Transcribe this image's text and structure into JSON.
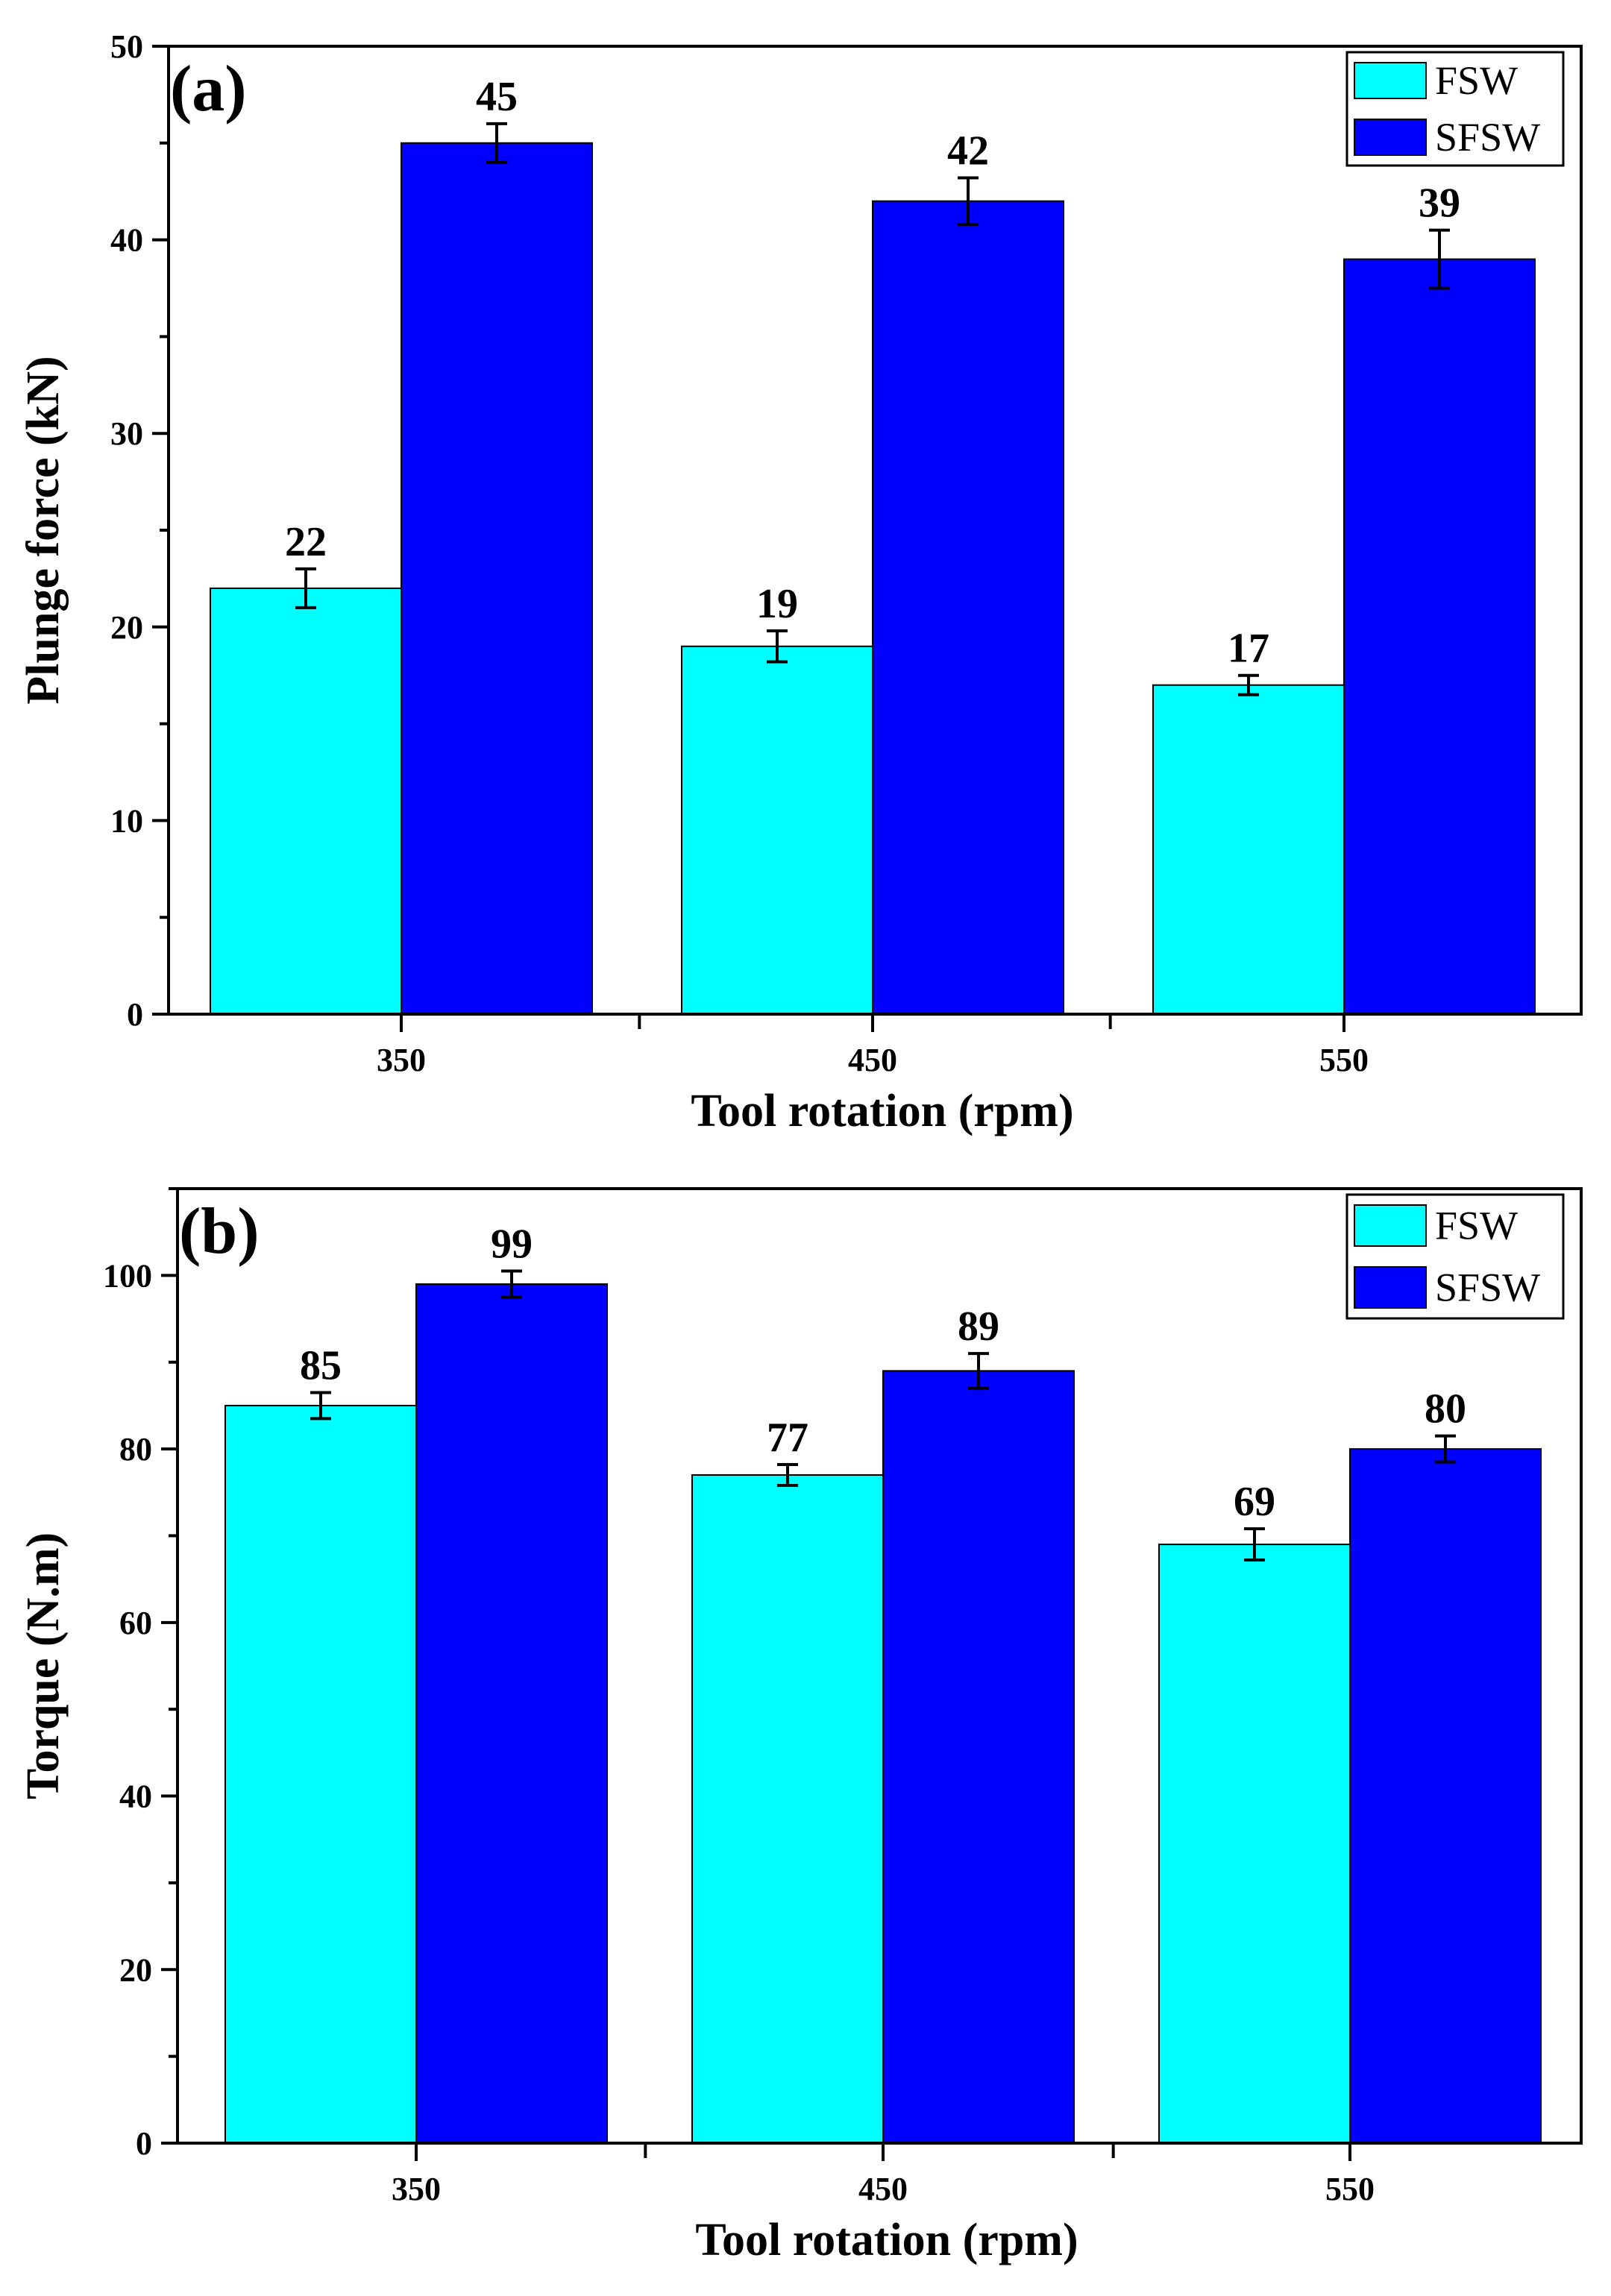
{
  "chart_data": [
    {
      "type": "bar",
      "panel_label": "(a)",
      "categories": [
        "350",
        "450",
        "550"
      ],
      "series": [
        {
          "name": "FSW",
          "color": "#00FFFF",
          "values": [
            22,
            19,
            17
          ],
          "errors": [
            1.0,
            0.8,
            0.5
          ]
        },
        {
          "name": "SFSW",
          "color": "#0000FF",
          "values": [
            45,
            42,
            39
          ],
          "errors": [
            1.0,
            1.2,
            1.5
          ]
        }
      ],
      "xlabel": "Tool rotation (rpm)",
      "ylabel": "Plunge force (kN)",
      "ylim": [
        0,
        50
      ],
      "yticks": [
        0,
        10,
        20,
        30,
        40,
        50
      ],
      "legend_position": "top-right"
    },
    {
      "type": "bar",
      "panel_label": "(b)",
      "categories": [
        "350",
        "450",
        "550"
      ],
      "series": [
        {
          "name": "FSW",
          "color": "#00FFFF",
          "values": [
            85,
            77,
            69
          ],
          "errors": [
            1.5,
            1.2,
            1.8
          ]
        },
        {
          "name": "SFSW",
          "color": "#0000FF",
          "values": [
            99,
            89,
            80
          ],
          "errors": [
            1.5,
            2.0,
            1.5
          ]
        }
      ],
      "xlabel": "Tool rotation (rpm)",
      "ylabel": "Torque (N.m)",
      "ylim": [
        0,
        110
      ],
      "yticks": [
        0,
        20,
        40,
        60,
        80,
        100
      ],
      "legend_position": "top-right"
    }
  ]
}
